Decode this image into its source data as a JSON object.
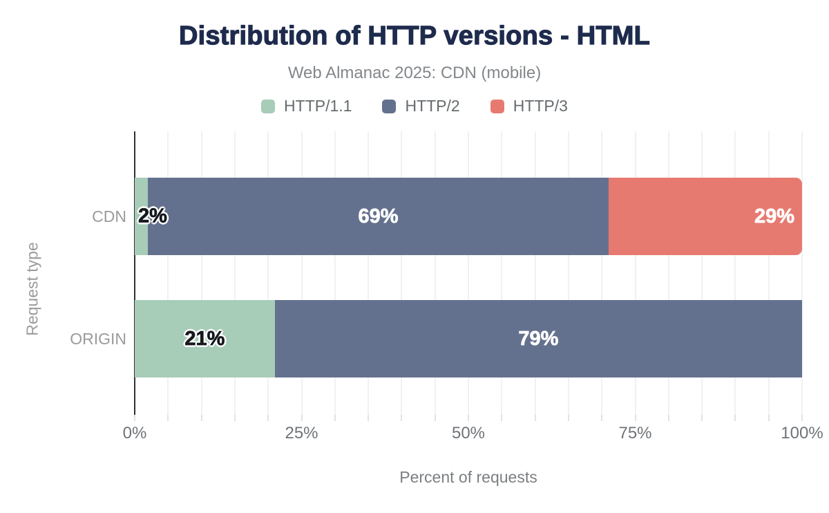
{
  "chart": {
    "title": "Distribution of HTTP versions - HTML",
    "subtitle": "Web Almanac 2025: CDN (mobile)",
    "x_axis_title": "Percent of requests",
    "y_axis_title": "Request type",
    "title_color": "#1e2b4d",
    "subtitle_color": "#83878a"
  },
  "chart_data": {
    "type": "bar",
    "orientation": "horizontal",
    "stacked": true,
    "title": "Distribution of HTTP versions - HTML",
    "subtitle": "Web Almanac 2025: CDN (mobile)",
    "xlabel": "Percent of requests",
    "ylabel": "Request type",
    "xlim": [
      0,
      100
    ],
    "x_ticks": [
      0,
      25,
      50,
      75,
      100
    ],
    "x_tick_labels": [
      "0%",
      "25%",
      "50%",
      "75%",
      "100%"
    ],
    "minor_gridline_step_percent": 5,
    "grid": "vertical-minor-on",
    "legend_position": "top",
    "categories": [
      "CDN",
      "ORIGIN"
    ],
    "series": [
      {
        "name": "HTTP/1.1",
        "color": "#a7ccb8",
        "label_color": "#15181c",
        "label_halo": true,
        "values": [
          2,
          21
        ]
      },
      {
        "name": "HTTP/2",
        "color": "#64718e",
        "label_color": "#ffffff",
        "label_halo": false,
        "values": [
          69,
          79
        ]
      },
      {
        "name": "HTTP/3",
        "color": "#e77a70",
        "label_color": "#ffffff",
        "label_halo": false,
        "values": [
          29,
          0
        ]
      }
    ],
    "data_label_format": "{value}%",
    "data_labels_visible": [
      "2%",
      "69%",
      "29%",
      "21%",
      "79%"
    ],
    "label_placement_hints": [
      {
        "category": "CDN",
        "series": "HTTP/1.1",
        "placement": "overflow-start"
      },
      {
        "category": "CDN",
        "series": "HTTP/3",
        "placement": "end"
      }
    ],
    "row_end_cap_rounded": [
      true,
      false
    ]
  }
}
